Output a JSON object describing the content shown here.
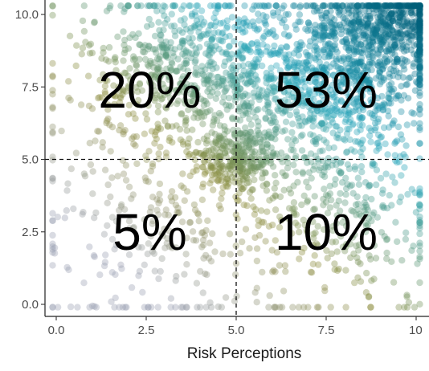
{
  "chart_data": {
    "type": "scatter",
    "xlabel": "Risk Perceptions",
    "ylabel": "",
    "xlim": [
      -0.4,
      10.0
    ],
    "ylim": [
      -0.3,
      10.5
    ],
    "x_ticks": [
      "0.0",
      "2.5",
      "5.0",
      "7.5",
      "10"
    ],
    "y_ticks": [
      "0.0",
      "2.5",
      "5.0",
      "7.5",
      "10.0"
    ],
    "reference_lines": {
      "x": 5.0,
      "y": 5.0,
      "style": "dashed"
    },
    "quadrant_labels": [
      {
        "text": "20%",
        "x": 2.6,
        "y": 7.4
      },
      {
        "text": "53%",
        "x": 7.5,
        "y": 7.4
      },
      {
        "text": "5%",
        "x": 2.6,
        "y": 2.5
      },
      {
        "text": "10%",
        "x": 7.5,
        "y": 2.5
      }
    ],
    "points": {
      "encoding": "color gradient from grey (low) through olive to teal (high)",
      "colors": [
        "#9aa0b4",
        "#8c8c3c",
        "#2aa6bb",
        "#005f7a"
      ],
      "clusters": [
        {
          "cx": 5.0,
          "cy": 5.0,
          "sx": 0.6,
          "sy": 0.6,
          "n": 260
        },
        {
          "cx": 9.3,
          "cy": 9.6,
          "sx": 0.9,
          "sy": 0.8,
          "n": 520
        },
        {
          "cx": 7.5,
          "cy": 7.8,
          "sx": 1.5,
          "sy": 1.4,
          "n": 900
        },
        {
          "cx": 3.6,
          "cy": 8.2,
          "sx": 1.4,
          "sy": 1.3,
          "n": 520
        },
        {
          "cx": 8.0,
          "cy": 3.0,
          "sx": 1.6,
          "sy": 1.7,
          "n": 240
        },
        {
          "cx": 2.5,
          "cy": 2.5,
          "sx": 1.8,
          "sy": 1.8,
          "n": 130
        },
        {
          "cx": 5.0,
          "cy": 5.0,
          "sx": 3.0,
          "sy": 3.0,
          "n": 500
        }
      ]
    }
  }
}
